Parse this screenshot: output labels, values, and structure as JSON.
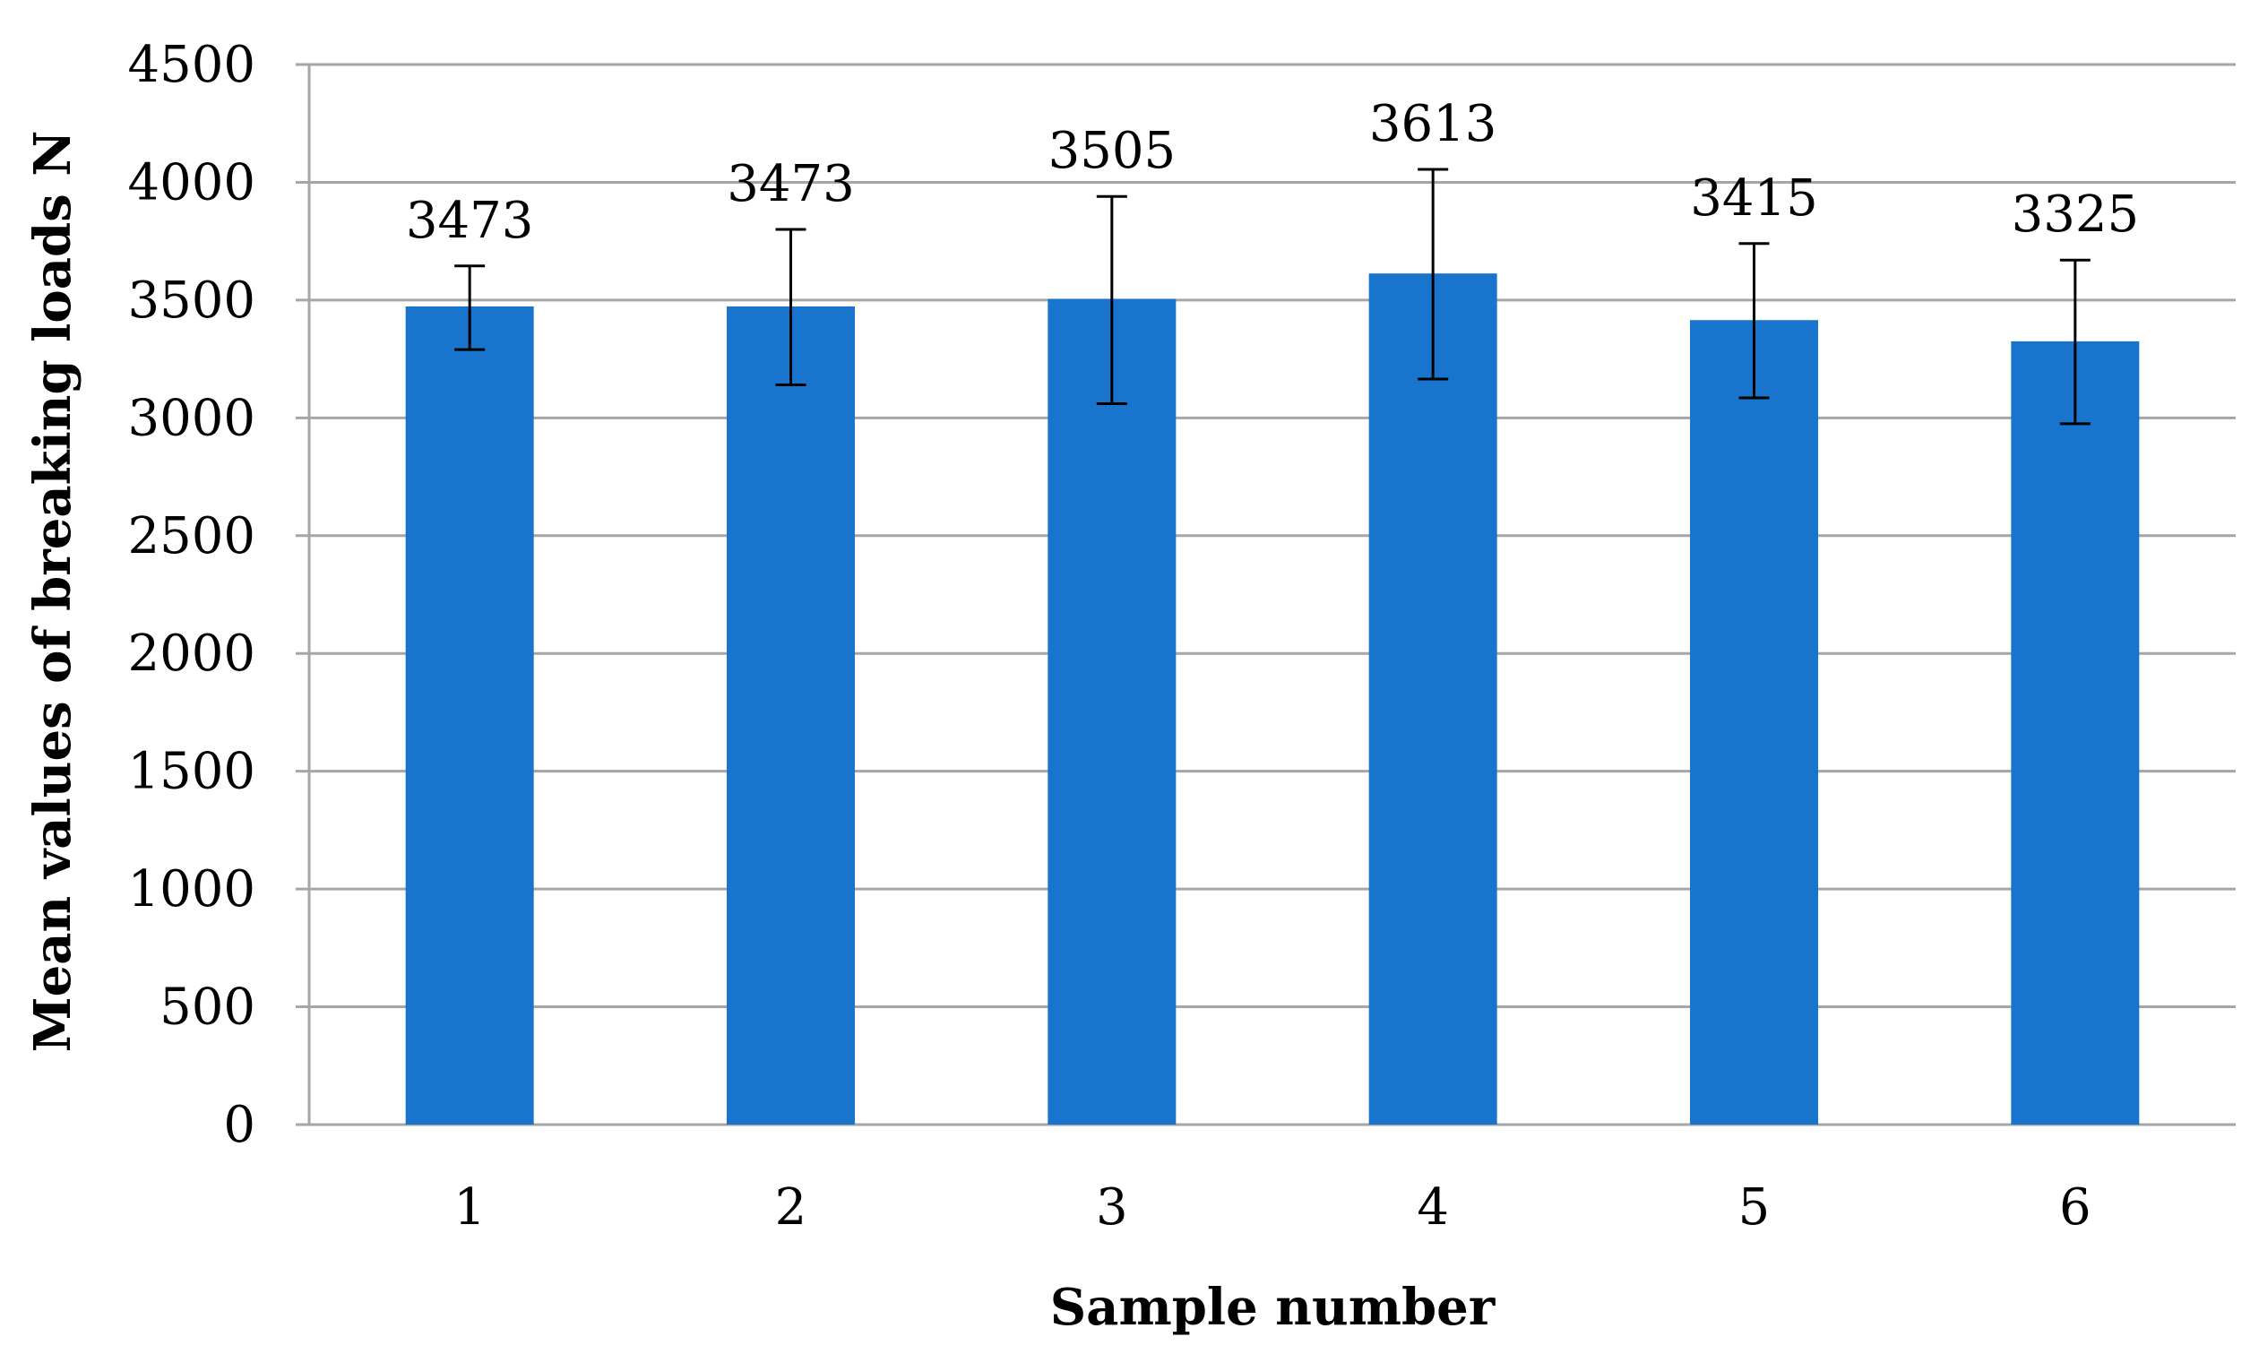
{
  "chart_data": {
    "type": "bar",
    "categories": [
      "1",
      "2",
      "3",
      "4",
      "5",
      "6"
    ],
    "values": [
      3473,
      3473,
      3505,
      3613,
      3415,
      3325
    ],
    "error_low": [
      3290,
      3140,
      3060,
      3165,
      3085,
      2975
    ],
    "error_high": [
      3645,
      3800,
      3940,
      4055,
      3740,
      3670
    ],
    "data_labels": [
      "3473",
      "3473",
      "3505",
      "3613",
      "3415",
      "3325"
    ],
    "xlabel": "Sample number",
    "ylabel": "Mean values of breaking loads N",
    "ylim": [
      0,
      4500
    ],
    "yticks": [
      0,
      500,
      1000,
      1500,
      2000,
      2500,
      3000,
      3500,
      4000,
      4500
    ],
    "ytick_labels": [
      "0",
      "500",
      "1000",
      "1500",
      "2000",
      "2500",
      "3000",
      "3500",
      "4000",
      "4500"
    ],
    "grid": true,
    "bar_color": "#1874CD",
    "gridline_color": "#A6A6A6"
  }
}
